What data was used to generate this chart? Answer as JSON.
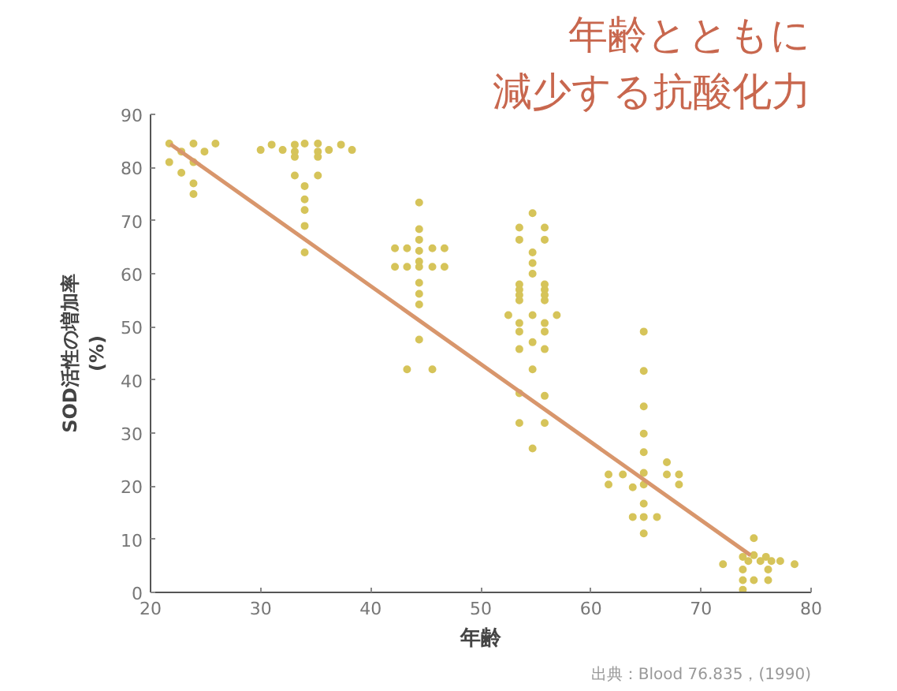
{
  "chart_data": {
    "type": "scatter",
    "title": "年齢とともに",
    "subtitle": "減少する抗酸化力",
    "xlabel": "年齢",
    "ylabel": "SOD活性の増加率\n(%)",
    "annotations": [
      "出典：Blood 76.835，(1990)"
    ],
    "xlim": [
      20,
      80
    ],
    "ylim": [
      0,
      90
    ],
    "xticks": [
      20,
      30,
      40,
      50,
      60,
      70,
      80
    ],
    "yticks": [
      0,
      10,
      20,
      30,
      40,
      50,
      60,
      70,
      80,
      90
    ],
    "grid": false,
    "series": [
      {
        "marker": "circle",
        "color": "#d6c45a",
        "x": [
          21.7,
          23.9,
          25.9,
          22.8,
          24.9,
          21.7,
          23.9,
          22.8,
          23.9,
          23.9,
          30.0,
          31.0,
          32.0,
          33.1,
          33.1,
          33.1,
          34.0,
          35.2,
          35.2,
          35.2,
          36.2,
          37.3,
          38.3,
          33.1,
          35.2,
          34.0,
          34.0,
          34.0,
          34.0,
          34.0,
          44.4,
          44.4,
          44.4,
          44.4,
          44.4,
          44.4,
          44.4,
          44.4,
          44.4,
          44.4,
          42.2,
          43.3,
          45.6,
          46.7,
          42.2,
          43.3,
          45.6,
          46.7,
          43.3,
          45.6,
          54.7,
          53.5,
          55.8,
          53.5,
          55.8,
          54.7,
          54.7,
          54.7,
          53.5,
          53.5,
          53.5,
          53.5,
          55.8,
          55.8,
          55.8,
          55.8,
          52.5,
          54.7,
          56.9,
          53.5,
          55.8,
          53.5,
          55.8,
          54.7,
          53.5,
          55.8,
          54.7,
          53.5,
          55.8,
          53.5,
          55.8,
          54.7,
          64.8,
          64.8,
          64.8,
          64.8,
          64.8,
          64.8,
          64.8,
          64.8,
          64.8,
          64.8,
          61.6,
          62.9,
          63.8,
          66.9,
          66.9,
          68.0,
          68.0,
          61.6,
          63.8,
          66.0,
          74.8,
          73.8,
          74.8,
          75.9,
          74.3,
          75.4,
          76.4,
          72.0,
          77.2,
          78.5,
          73.8,
          76.1,
          73.8,
          74.8,
          76.1,
          73.8
        ],
        "values": [
          84.5,
          84.5,
          84.5,
          83,
          83,
          81,
          81,
          79,
          77,
          75,
          83.3,
          84.3,
          83.3,
          84.3,
          83,
          82,
          84.5,
          84.5,
          83,
          82,
          83.3,
          84.3,
          83.3,
          78.5,
          78.5,
          76.5,
          74,
          72,
          69,
          64,
          73.4,
          68.4,
          66.4,
          64.3,
          62.3,
          61.3,
          58.3,
          56.2,
          54.2,
          47.6,
          64.8,
          64.8,
          64.8,
          64.8,
          61.3,
          61.3,
          61.3,
          61.3,
          42,
          42,
          71.4,
          68.7,
          68.7,
          66.4,
          66.4,
          64,
          62,
          60,
          58,
          57,
          56,
          55,
          58,
          57,
          56,
          55,
          52.2,
          52.2,
          52.2,
          50.7,
          50.7,
          49.1,
          49.1,
          47.1,
          45.8,
          45.8,
          42,
          37.5,
          37,
          31.9,
          31.9,
          27.1,
          49.1,
          41.7,
          35,
          29.9,
          26.4,
          22.5,
          20.3,
          16.7,
          14.2,
          11.1,
          22.2,
          22.2,
          19.8,
          24.5,
          22.2,
          22.2,
          20.3,
          20.3,
          14.2,
          14.2,
          10.2,
          6.7,
          7,
          6.7,
          5.9,
          5.9,
          5.9,
          5.3,
          5.9,
          5.3,
          4.3,
          4.3,
          2.3,
          2.3,
          2.3,
          0.5
        ]
      },
      {
        "type": "line",
        "marker": "none",
        "color": "#d8966c",
        "x": [
          21.8,
          74.5
        ],
        "values": [
          84.4,
          7
        ]
      }
    ]
  }
}
